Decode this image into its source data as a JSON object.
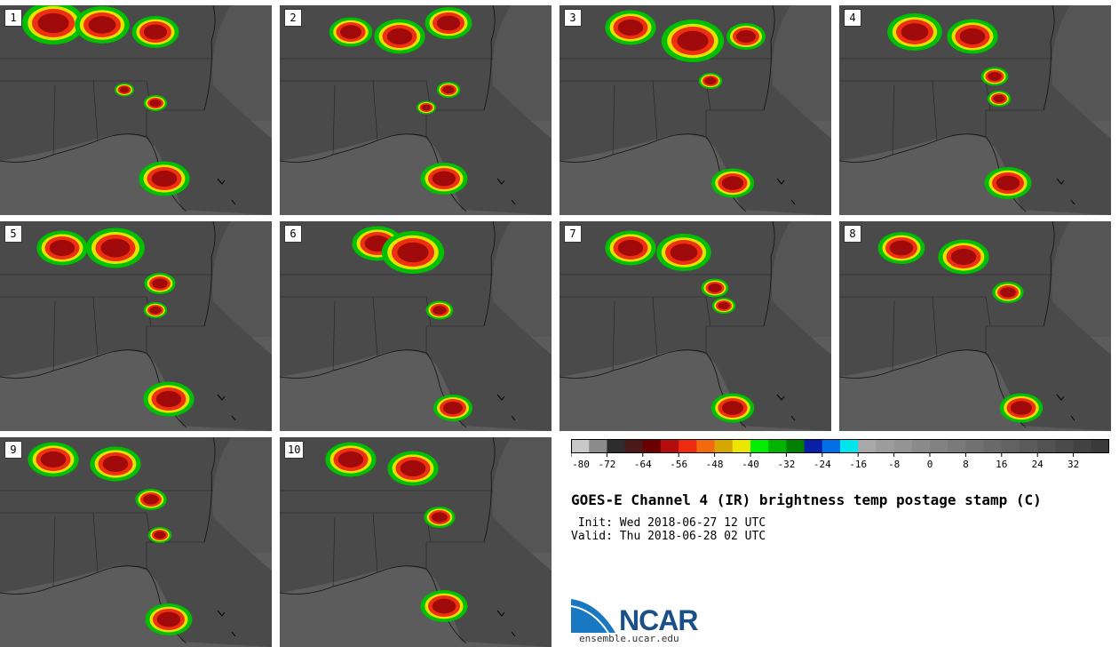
{
  "panels": [
    {
      "label": "1"
    },
    {
      "label": "2"
    },
    {
      "label": "3"
    },
    {
      "label": "4"
    },
    {
      "label": "5"
    },
    {
      "label": "6"
    },
    {
      "label": "7"
    },
    {
      "label": "8"
    },
    {
      "label": "9"
    },
    {
      "label": "10"
    }
  ],
  "colorbar": {
    "tick_labels": [
      "-80",
      "-72",
      "-64",
      "-56",
      "-48",
      "-40",
      "-32",
      "-24",
      "-16",
      "-8",
      "0",
      "8",
      "16",
      "24",
      "32"
    ],
    "colors": [
      "#c8c8c8",
      "#8c8c8c",
      "#2d2d2d",
      "#4b1a1a",
      "#6b0000",
      "#b50d0d",
      "#ee2a0f",
      "#f26a0d",
      "#d8a600",
      "#ece500",
      "#00ef00",
      "#00b400",
      "#008000",
      "#0a1fa8",
      "#006ee6",
      "#00e6ee",
      "#a8a8a8",
      "#9c9c9c",
      "#949494",
      "#8a8a8a",
      "#828282",
      "#7a7a7a",
      "#727272",
      "#6a6a6a",
      "#626262",
      "#5a5a5a",
      "#525252",
      "#4a4a4a",
      "#424242",
      "#3a3a3a"
    ]
  },
  "title": "GOES-E Channel 4 (IR) brightness temp postage stamp (C)",
  "init_line": " Init: Wed 2018-06-27 12 UTC",
  "valid_line": "Valid: Thu 2018-06-28 02 UTC",
  "logo": {
    "text": "NCAR",
    "url": "ensemble.ucar.edu"
  }
}
